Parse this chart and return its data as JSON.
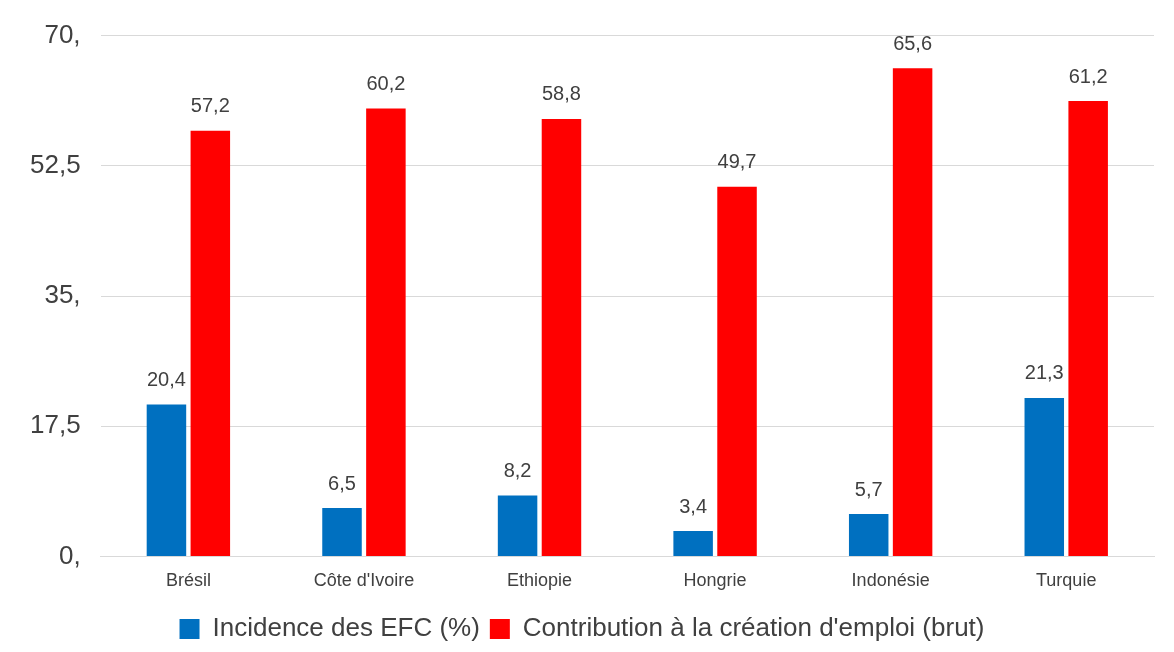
{
  "chart_data": {
    "type": "bar",
    "categories": [
      "Brésil",
      "Côte d'Ivoire",
      "Ethiopie",
      "Hongrie",
      "Indonésie",
      "Turquie"
    ],
    "series": [
      {
        "name": "Incidence des EFC (%)",
        "color": "#0070c0",
        "values": [
          20.4,
          6.5,
          8.2,
          3.4,
          5.7,
          21.3
        ],
        "value_labels": [
          "20,4",
          "6,5",
          "8,2",
          "3,4",
          "5,7",
          "21,3"
        ]
      },
      {
        "name": "Contribution à la création d'emploi (brut)",
        "color": "#ff0000",
        "values": [
          57.2,
          60.2,
          58.8,
          49.7,
          65.6,
          61.2
        ],
        "value_labels": [
          "57,2",
          "60,2",
          "58,8",
          "49,7",
          "65,6",
          "61,2"
        ]
      }
    ],
    "ylim": [
      0,
      70
    ],
    "yticks": [
      {
        "value": 0,
        "label": "0,"
      },
      {
        "value": 17.5,
        "label": "17,5"
      },
      {
        "value": 35,
        "label": "35,"
      },
      {
        "value": 52.5,
        "label": "52,5"
      },
      {
        "value": 70,
        "label": "70,"
      }
    ],
    "grid": "y",
    "legend": "bottom"
  }
}
